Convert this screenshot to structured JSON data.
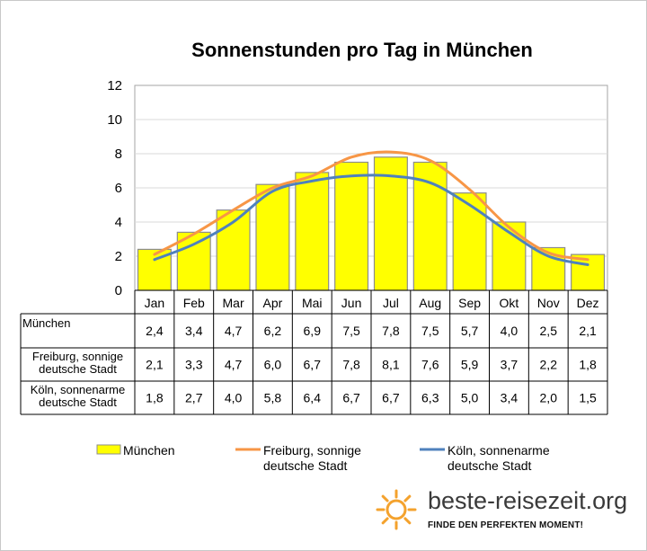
{
  "chart_data": {
    "type": "bar",
    "title": "Sonnenstunden pro Tag in München",
    "categories": [
      "Jan",
      "Feb",
      "Mar",
      "Apr",
      "Mai",
      "Jun",
      "Jul",
      "Aug",
      "Sep",
      "Okt",
      "Nov",
      "Dez"
    ],
    "ylim": [
      0,
      12
    ],
    "yticks": [
      0,
      2,
      4,
      6,
      8,
      10,
      12
    ],
    "grid": true,
    "legend_position": "bottom",
    "series": [
      {
        "name": "München",
        "type": "bar",
        "color": "#ffff00",
        "table_label": [
          "München"
        ],
        "values": [
          2.4,
          3.4,
          4.7,
          6.2,
          6.9,
          7.5,
          7.8,
          7.5,
          5.7,
          4.0,
          2.5,
          2.1
        ],
        "labels": [
          "2,4",
          "3,4",
          "4,7",
          "6,2",
          "6,9",
          "7,5",
          "7,8",
          "7,5",
          "5,7",
          "4,0",
          "2,5",
          "2,1"
        ],
        "legend": [
          "München"
        ]
      },
      {
        "name": "Freiburg, sonnige deutsche Stadt",
        "type": "line",
        "color": "#f79646",
        "table_label": [
          "Freiburg, sonnige",
          "deutsche Stadt"
        ],
        "values": [
          2.1,
          3.3,
          4.7,
          6.0,
          6.7,
          7.8,
          8.1,
          7.6,
          5.9,
          3.7,
          2.2,
          1.8
        ],
        "labels": [
          "2,1",
          "3,3",
          "4,7",
          "6,0",
          "6,7",
          "7,8",
          "8,1",
          "7,6",
          "5,9",
          "3,7",
          "2,2",
          "1,8"
        ],
        "legend": [
          "Freiburg, sonnige",
          "deutsche Stadt"
        ]
      },
      {
        "name": "Köln, sonnenarme deutsche Stadt",
        "type": "line",
        "color": "#4f81bd",
        "table_label": [
          "Köln, sonnenarme",
          "deutsche Stadt"
        ],
        "values": [
          1.8,
          2.7,
          4.0,
          5.8,
          6.4,
          6.7,
          6.7,
          6.3,
          5.0,
          3.4,
          2.0,
          1.5
        ],
        "labels": [
          "1,8",
          "2,7",
          "4,0",
          "5,8",
          "6,4",
          "6,7",
          "6,7",
          "6,3",
          "5,0",
          "3,4",
          "2,0",
          "1,5"
        ],
        "legend": [
          "Köln, sonnenarme",
          "deutsche Stadt"
        ]
      }
    ]
  },
  "branding": {
    "site": "beste-reisezeit.org",
    "tagline": "FINDE DEN PERFEKTEN MOMENT!",
    "sun_color": "#f4a22d",
    "text_color": "#3a3a3a"
  }
}
